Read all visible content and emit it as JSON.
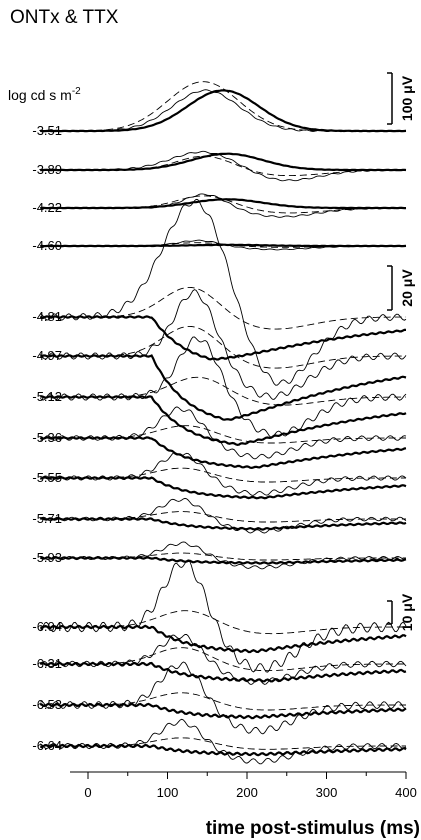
{
  "chart_data": {
    "type": "line",
    "title": "ONTx & TTX",
    "intensity_unit": "log cd s m",
    "intensity_unit_exponent": "-2",
    "xlabel": "time post-stimulus (ms)",
    "ylabel": "",
    "xlim": [
      -20,
      400
    ],
    "xticks": [
      0,
      100,
      200,
      300,
      400
    ],
    "series_styles": [
      "thick solid",
      "thin solid",
      "dashed"
    ],
    "groups": [
      {
        "scale_bar": "100 μV",
        "traces": [
          {
            "intensity": "-3.51",
            "thick_amp": 70,
            "thick_peak": 170,
            "thin_amp": 70,
            "thin_peak": 148,
            "dash_amp": 85,
            "dash_peak": 145
          },
          {
            "intensity": "-3.89",
            "thick_amp": 28,
            "thick_peak": 175,
            "thin_amp": 33,
            "thin_peak": 148,
            "dash_amp": 25,
            "dash_peak": 148
          },
          {
            "intensity": "-4.22",
            "thick_amp": 15,
            "thick_peak": 175,
            "thin_amp": 25,
            "thin_peak": 148,
            "dash_amp": 22,
            "dash_peak": 148
          },
          {
            "intensity": "-4.60",
            "thick_amp": 2,
            "thick_peak": 175,
            "thin_amp": 10,
            "thin_peak": 140,
            "dash_amp": 6,
            "dash_peak": 140
          }
        ]
      },
      {
        "scale_bar": "20 μV",
        "traces": [
          {
            "intensity": "-4.81",
            "thick_amp": -20,
            "thick_peak": 155,
            "thin_amp": 47,
            "thin_peak": 138,
            "dash_amp": 12,
            "dash_peak": 130
          },
          {
            "intensity": "-4.97",
            "thick_amp": -28,
            "thick_peak": 175,
            "thin_amp": 26,
            "thin_peak": 135,
            "dash_amp": 12,
            "dash_peak": 130
          },
          {
            "intensity": "-5.12",
            "thick_amp": -20,
            "thick_peak": 190,
            "thin_amp": 24,
            "thin_peak": 140,
            "dash_amp": 8,
            "dash_peak": 140
          },
          {
            "intensity": "-5.36",
            "thick_amp": -12,
            "thick_peak": 210,
            "thin_amp": 12,
            "thin_peak": 118,
            "dash_amp": 5,
            "dash_peak": 125
          },
          {
            "intensity": "-5.55",
            "thick_amp": -8,
            "thick_peak": 220,
            "thin_amp": 10,
            "thin_peak": 118,
            "dash_amp": 4,
            "dash_peak": 120
          },
          {
            "intensity": "-5.71",
            "thick_amp": -4,
            "thick_peak": 220,
            "thin_amp": 8,
            "thin_peak": 118,
            "dash_amp": 3,
            "dash_peak": 120
          },
          {
            "intensity": "-5.93",
            "thick_amp": -2,
            "thick_peak": 230,
            "thin_amp": 6,
            "thin_peak": 120,
            "dash_amp": 2,
            "dash_peak": 120
          }
        ]
      },
      {
        "scale_bar": "10 μV",
        "traces": [
          {
            "intensity": "-6.04",
            "thick_amp": -6,
            "thick_peak": 210,
            "thin_amp": 16,
            "thin_peak": 122,
            "dash_amp": 4,
            "dash_peak": 125
          },
          {
            "intensity": "-6.31",
            "thick_amp": -4,
            "thick_peak": 230,
            "thin_amp": 7,
            "thin_peak": 118,
            "dash_amp": 4,
            "dash_peak": 120
          },
          {
            "intensity": "-6.53",
            "thick_amp": -3,
            "thick_peak": 210,
            "thin_amp": 10,
            "thin_peak": 118,
            "dash_amp": 3,
            "dash_peak": 120
          },
          {
            "intensity": "-6.64",
            "thick_amp": -2,
            "thick_peak": 220,
            "thin_amp": 6,
            "thin_peak": 118,
            "dash_amp": 2,
            "dash_peak": 120
          }
        ]
      }
    ]
  }
}
